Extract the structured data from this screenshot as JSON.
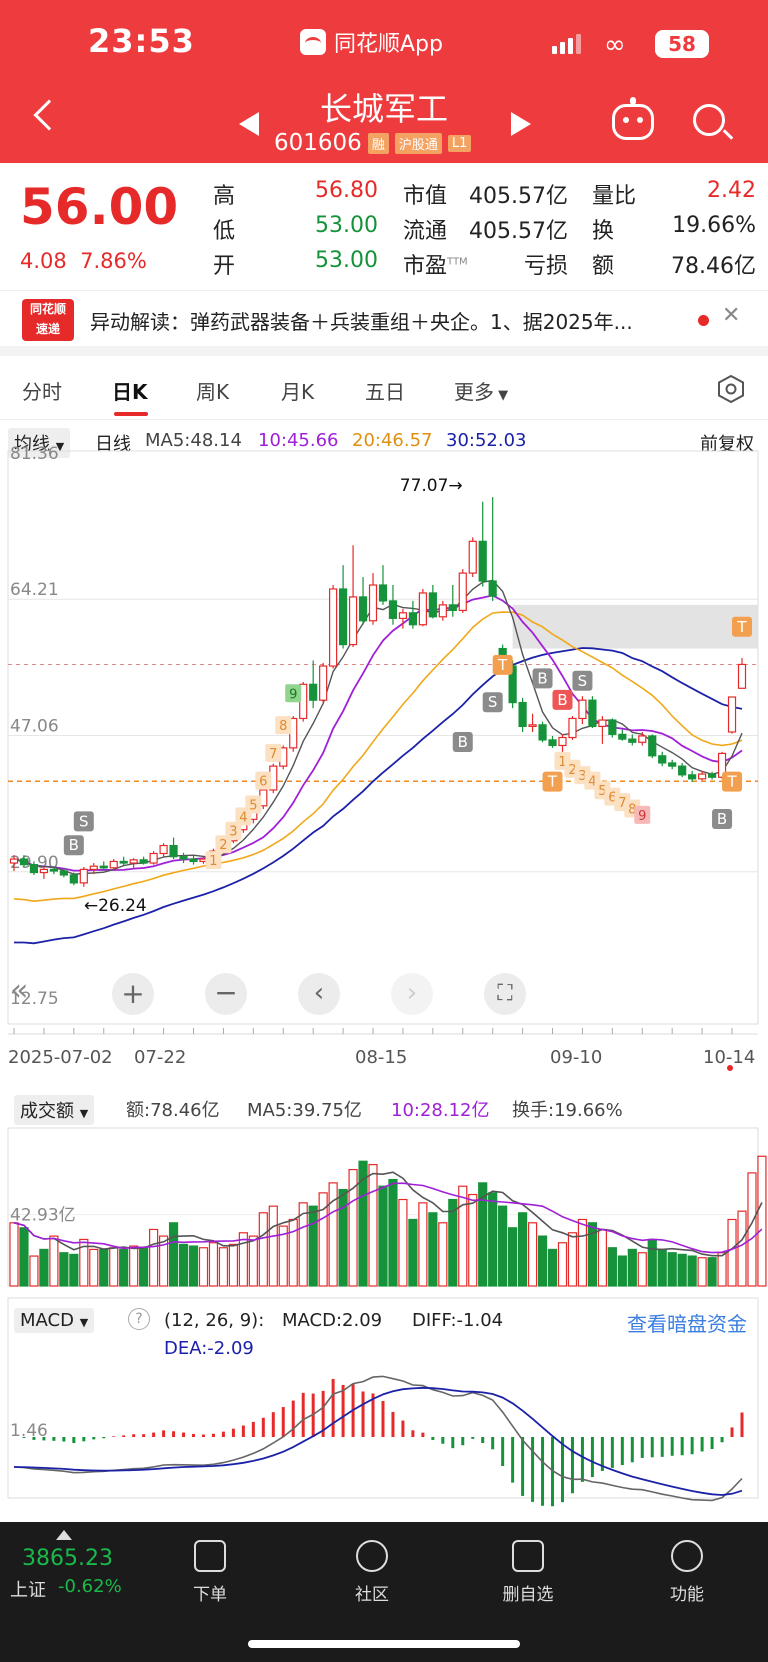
{
  "status_bar": {
    "time": "23:53",
    "app_name": "同花顺App",
    "battery": "58"
  },
  "header": {
    "stock_name": "长城军工",
    "stock_code": "601606",
    "tags": [
      "融",
      "沪股通",
      "L1"
    ]
  },
  "quote": {
    "price": "56.00",
    "change": "4.08",
    "change_pct": "7.86%",
    "items": [
      {
        "label": "高",
        "value": "56.80"
      },
      {
        "label": "低",
        "value": "53.00"
      },
      {
        "label": "开",
        "value": "53.00"
      },
      {
        "label": "市值",
        "value": "405.57亿"
      },
      {
        "label": "流通",
        "value": "405.57亿"
      },
      {
        "label": "市盈",
        "sup": "TTM",
        "value": "亏损"
      },
      {
        "label": "量比",
        "value": "2.42"
      },
      {
        "label": "换",
        "value": "19.66%"
      },
      {
        "label": "额",
        "value": "78.46亿"
      }
    ]
  },
  "news": {
    "logo_top": "同花顺",
    "logo_bottom": "速递",
    "text": "异动解读：弹药武器装备＋兵装重组＋央企。1、据2025年..."
  },
  "tabs": [
    "分时",
    "日K",
    "周K",
    "月K",
    "五日",
    "更多"
  ],
  "active_tab": "日K",
  "kline_bar": {
    "indicator": "均线",
    "period": "日线",
    "ma5": "MA5:48.14",
    "ma10": "10:45.66",
    "ma20": "20:46.57",
    "ma30": "30:52.03",
    "fuquan": "前复权"
  },
  "chart_data": [
    {
      "type": "candlestick",
      "title": "日K",
      "y_ticks": [
        "81.36",
        "64.21",
        "47.06",
        "29.90",
        "12.75"
      ],
      "ylim": [
        12.75,
        81.36
      ],
      "x_ticks": [
        "2025-07-02",
        "07-22",
        "08-15",
        "09-10",
        "10-14"
      ],
      "annotations": [
        {
          "text": "77.07→",
          "value": 77.07
        },
        {
          "text": "←26.24",
          "value": 26.24
        }
      ],
      "signal_labels": [
        "B",
        "S",
        "B",
        "S",
        "T",
        "B",
        "S",
        "B",
        "T",
        "T",
        "T"
      ],
      "count_labels": [
        "1",
        "2",
        "3",
        "4",
        "5",
        "6",
        "7",
        "8",
        "9",
        "1",
        "2",
        "3",
        "4",
        "5",
        "6",
        "7",
        "8",
        "9"
      ],
      "ohlc": [
        [
          31,
          32,
          30,
          31.5
        ],
        [
          31.5,
          32,
          30.5,
          30.8
        ],
        [
          30.8,
          31.2,
          29.5,
          29.8
        ],
        [
          29.8,
          30.5,
          29,
          30.2
        ],
        [
          30.2,
          30.6,
          29.6,
          30.0
        ],
        [
          30,
          30.4,
          29.2,
          29.5
        ],
        [
          29.5,
          29.8,
          28.2,
          28.5
        ],
        [
          28.5,
          30.5,
          28,
          30.2
        ],
        [
          30.2,
          31,
          29.6,
          30.6
        ],
        [
          30.6,
          31.2,
          30,
          30.4
        ],
        [
          30.4,
          31.5,
          30.2,
          31.2
        ],
        [
          31.2,
          31.8,
          30.6,
          31.0
        ],
        [
          31,
          31.6,
          30.4,
          31.4
        ],
        [
          31.4,
          31.8,
          30.8,
          31.0
        ],
        [
          31,
          32.5,
          30.8,
          32.2
        ],
        [
          32.2,
          33.5,
          31.8,
          33.2
        ],
        [
          33.2,
          34.2,
          31.5,
          31.8
        ],
        [
          31.8,
          32.3,
          31,
          31.5
        ],
        [
          31.5,
          32,
          30.8,
          31.2
        ],
        [
          31.2,
          31.8,
          30.9,
          31.5
        ],
        [
          31.5,
          32.8,
          31.2,
          32.5
        ],
        [
          32.5,
          34.2,
          32.2,
          33.8
        ],
        [
          33.8,
          35.5,
          33.5,
          35.2
        ],
        [
          35.2,
          36.8,
          34.8,
          36.5
        ],
        [
          36.5,
          38.5,
          36,
          38.2
        ],
        [
          38.2,
          40.5,
          37.8,
          40.2
        ],
        [
          40.2,
          43.5,
          39.8,
          43.2
        ],
        [
          43.2,
          45.8,
          42.8,
          45.5
        ],
        [
          45.5,
          49.5,
          45,
          49.2
        ],
        [
          49.2,
          53.8,
          48.8,
          53.5
        ],
        [
          53.5,
          56.5,
          50.5,
          51.5
        ],
        [
          51.5,
          56.2,
          51.2,
          55.8
        ],
        [
          55.8,
          66,
          55.5,
          65.5
        ],
        [
          65.5,
          68.5,
          58,
          58.5
        ],
        [
          58.5,
          71,
          58.2,
          64.5
        ],
        [
          64.5,
          67,
          61,
          61.5
        ],
        [
          61.5,
          67.5,
          61,
          66
        ],
        [
          66,
          68.5,
          63.5,
          64
        ],
        [
          64,
          66,
          61,
          61.8
        ],
        [
          61.8,
          63,
          60.5,
          62.5
        ],
        [
          62.5,
          64,
          60.5,
          61
        ],
        [
          61,
          65.5,
          60.8,
          65
        ],
        [
          65,
          66,
          61.8,
          62
        ],
        [
          62,
          64,
          61.5,
          63.5
        ],
        [
          63.5,
          66,
          62,
          62.8
        ],
        [
          62.8,
          68,
          62.5,
          67.5
        ],
        [
          67.5,
          72,
          67,
          71.5
        ],
        [
          71.5,
          76.5,
          65.8,
          66.5
        ],
        [
          66.5,
          77.07,
          64,
          64.6
        ],
        [
          58,
          58.5,
          55,
          55.8
        ],
        [
          55.8,
          56.5,
          50.5,
          51.2
        ],
        [
          51.2,
          51.8,
          47.5,
          48.2
        ],
        [
          48.2,
          49.8,
          47.5,
          48.4
        ],
        [
          48.4,
          48.8,
          46.2,
          46.5
        ],
        [
          46.5,
          47,
          45.5,
          45.8
        ],
        [
          45.8,
          47.2,
          44.8,
          46.8
        ],
        [
          46.8,
          49.5,
          46.5,
          49.2
        ],
        [
          49.2,
          52,
          48.5,
          51.5
        ],
        [
          51.5,
          52,
          48,
          48.2
        ],
        [
          48.2,
          49.5,
          46,
          49
        ],
        [
          49,
          49.2,
          46.8,
          47.2
        ],
        [
          47.2,
          47.8,
          46.4,
          46.6
        ],
        [
          46.6,
          47.2,
          45.8,
          46.2
        ],
        [
          46.2,
          47.5,
          45.8,
          47
        ],
        [
          47,
          47.2,
          44.2,
          44.5
        ],
        [
          44.5,
          45,
          43.2,
          43.6
        ],
        [
          43.6,
          44,
          42.8,
          43.2
        ],
        [
          43.2,
          43.6,
          41.8,
          42.1
        ],
        [
          42.1,
          42.6,
          41.2,
          41.6
        ],
        [
          41.6,
          42.6,
          41.4,
          42.2
        ],
        [
          42.2,
          42.5,
          41.5,
          41.8
        ],
        [
          41.8,
          45,
          41.6,
          44.8
        ],
        [
          47.5,
          51.9,
          47.3,
          51.9
        ],
        [
          53,
          56.8,
          53,
          56
        ]
      ]
    },
    {
      "type": "bar",
      "title": "成交额",
      "labels": {
        "indicator": "成交额",
        "amount": "额:78.46亿",
        "ma5": "MA5:39.75亿",
        "ma10": "10:28.12亿",
        "turnover": "换手:19.66%"
      },
      "y_tick": "42.93亿",
      "ylim": [
        0,
        95
      ],
      "values": [
        38,
        35,
        18,
        22,
        30,
        20,
        19,
        28,
        22,
        22,
        23,
        22,
        24,
        23,
        34,
        30,
        38,
        25,
        24,
        23,
        26,
        23,
        25,
        32,
        30,
        44,
        48,
        36,
        40,
        50,
        48,
        56,
        62,
        58,
        70,
        75,
        73,
        60,
        64,
        52,
        40,
        50,
        44,
        38,
        52,
        60,
        55,
        62,
        56,
        48,
        35,
        44,
        38,
        30,
        22,
        26,
        32,
        40,
        38,
        34,
        23,
        18,
        22,
        20,
        28,
        22,
        20,
        19,
        18,
        17,
        17,
        20,
        40,
        45,
        68,
        78
      ],
      "up": [
        1,
        0,
        1,
        0,
        1,
        0,
        0,
        1,
        1,
        0,
        1,
        0,
        1,
        0,
        1,
        1,
        0,
        0,
        0,
        1,
        1,
        1,
        1,
        1,
        1,
        1,
        1,
        1,
        1,
        1,
        0,
        1,
        1,
        0,
        1,
        0,
        1,
        0,
        0,
        1,
        0,
        1,
        0,
        1,
        0,
        1,
        1,
        0,
        0,
        0,
        0,
        0,
        1,
        0,
        0,
        1,
        1,
        1,
        0,
        1,
        0,
        0,
        0,
        1,
        0,
        0,
        0,
        0,
        0,
        1,
        0,
        1,
        1,
        1,
        1,
        1
      ]
    },
    {
      "type": "bar",
      "title": "MACD",
      "labels": {
        "indicator": "MACD",
        "params": "(12, 26, 9):",
        "macd": "MACD:2.09",
        "diff": "DIFF:-1.04",
        "dea": "DEA:-2.09",
        "link": "查看暗盘资金"
      },
      "y_tick": "1.46",
      "ylim": [
        -5,
        5
      ]
    }
  ],
  "bottom_nav": {
    "index_value": "3865.23",
    "index_name": "上证",
    "index_change": "-0.62%",
    "items": [
      {
        "label": "下单",
        "icon": "document-icon"
      },
      {
        "label": "社区",
        "icon": "star-badge-icon"
      },
      {
        "label": "删自选",
        "icon": "minus-box-icon"
      },
      {
        "label": "功能",
        "icon": "menu-circle-icon"
      }
    ]
  },
  "colors": {
    "header": "#ee3b3e",
    "up": "#e62a2a",
    "down": "#16923a",
    "ma5": "#555555",
    "ma10": "#a020d8",
    "ma20": "#f0a818",
    "ma30": "#1c22a8"
  }
}
